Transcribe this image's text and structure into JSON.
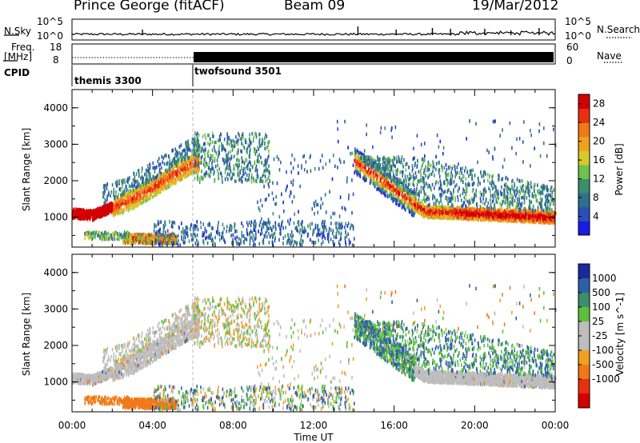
{
  "header": {
    "station": "Prince George (fitACF)",
    "beam": "Beam 09",
    "date": "19/Mar/2012"
  },
  "noise_panel": {
    "left_label": "N.Sky",
    "right_label": "N.Search",
    "left_ticks": [
      "10^5",
      "10^0"
    ],
    "right_ticks": [
      "10^5",
      "10^0"
    ]
  },
  "freq_panel": {
    "left_label_1": "Freq.",
    "left_label_2": "[MHz]",
    "left_ticks": [
      "18",
      "8"
    ],
    "right_label": "Nave",
    "right_ticks": [
      "60",
      "0"
    ]
  },
  "cpid": {
    "label": "CPID",
    "modes": [
      {
        "name": "themis 3300",
        "start_hour": 0
      },
      {
        "name": "twofsound 3501",
        "start_hour": 6
      }
    ]
  },
  "chart_data": [
    {
      "type": "heatmap",
      "title": "Power",
      "xlabel": "Time UT",
      "ylabel": "Slant Range [km]",
      "xlim": [
        0,
        24
      ],
      "ylim": [
        180,
        4500
      ],
      "x_ticks": [
        "00:00",
        "04:00",
        "08:00",
        "12:00",
        "16:00",
        "20:00",
        "00:00"
      ],
      "y_ticks": [
        "1000",
        "2000",
        "3000",
        "4000"
      ],
      "colorbar": {
        "label": "Power [dB]",
        "ticks": [
          "28",
          "24",
          "20",
          "16",
          "12",
          "8",
          "4"
        ],
        "range": [
          0,
          30
        ],
        "colors": [
          "#1a1ae6",
          "#2a4fb8",
          "#2f6f8f",
          "#3b8f6a",
          "#6fc24a",
          "#d8c82a",
          "#f0a020",
          "#f07818",
          "#e83010",
          "#d40000"
        ]
      },
      "features": [
        {
          "name": "morning arc",
          "hours": [
            0,
            6.3
          ],
          "range_km": [
            1100,
            2600
          ],
          "power_db": [
            8,
            28
          ]
        },
        {
          "name": "near-range band",
          "hours": [
            2.5,
            5.2
          ],
          "range_km": [
            300,
            600
          ],
          "power_db": [
            10,
            26
          ]
        },
        {
          "name": "arc continuation",
          "hours": [
            6,
            10
          ],
          "range_km": [
            1800,
            3400
          ],
          "power_db": [
            4,
            16
          ]
        },
        {
          "name": "evening arc",
          "hours": [
            14,
            24
          ],
          "range_km": [
            900,
            2600
          ],
          "power_db": [
            6,
            30
          ]
        }
      ]
    },
    {
      "type": "heatmap",
      "title": "Velocity",
      "xlabel": "Time UT",
      "ylabel": "Slant Range [km]",
      "xlim": [
        0,
        24
      ],
      "ylim": [
        180,
        4500
      ],
      "x_ticks": [
        "00:00",
        "04:00",
        "08:00",
        "12:00",
        "16:00",
        "20:00",
        "00:00"
      ],
      "y_ticks": [
        "1000",
        "2000",
        "3000",
        "4000"
      ],
      "colorbar": {
        "label": "Velocity [m s^-1]",
        "ticks": [
          "1000",
          "500",
          "100",
          "25",
          "-25",
          "-100",
          "-500",
          "-1000"
        ],
        "colors": [
          "#1a2a9a",
          "#2f5fa8",
          "#3b8f6a",
          "#5cc03a",
          "#bdbdbd",
          "#bdbdbd",
          "#f0a020",
          "#f07818",
          "#e83010",
          "#d40000"
        ]
      },
      "features": [
        {
          "name": "morning arc",
          "hours": [
            0,
            6.3
          ],
          "range_km": [
            1100,
            2600
          ],
          "velocity": [
            -25,
            25
          ]
        },
        {
          "name": "near-range band",
          "hours": [
            2.5,
            5.2
          ],
          "range_km": [
            300,
            600
          ],
          "velocity": [
            -500,
            -100
          ]
        },
        {
          "name": "evening arc",
          "hours": [
            14,
            24
          ],
          "range_km": [
            900,
            2600
          ],
          "velocity": [
            -25,
            100
          ]
        }
      ]
    }
  ]
}
